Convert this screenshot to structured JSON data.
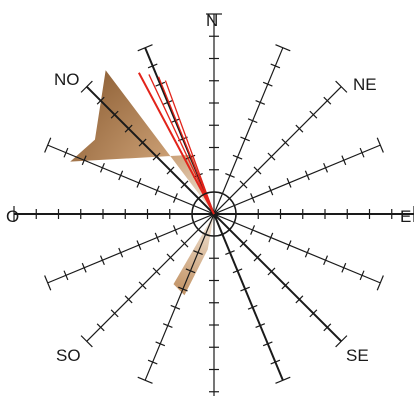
{
  "labels": {
    "n": "N",
    "ne": "NE",
    "e": "E",
    "se": "SE",
    "s": "S",
    "so": "SO",
    "o": "O",
    "no": "NO"
  },
  "chart_data": {
    "type": "rose",
    "directions": 16,
    "main_axes": [
      "N",
      "E",
      "S",
      "O"
    ],
    "bold_axes": [
      "NO",
      "SO",
      "NNO",
      "O"
    ],
    "ticks_per_spoke": 8,
    "petals": [
      {
        "name": "",
        "vertices_deg_len": [
          [
            0,
            0
          ],
          [
            -37,
            1.0
          ],
          [
            -58,
            0.78
          ],
          [
            -70,
            0.85
          ],
          [
            -20,
            0.35
          ]
        ],
        "color": "#a87545"
      },
      {
        "name": "",
        "vertices_deg_len": [
          [
            0,
            0
          ],
          [
            -150,
            0.45
          ],
          [
            -160,
            0.48
          ],
          [
            -170,
            0.2
          ]
        ],
        "color": "#8c5e34"
      }
    ],
    "red_lines_deg": [
      -28,
      -25,
      -22,
      -20
    ],
    "colors": {
      "spoke": "#1a1a1a",
      "petal_dark": "#8c5e34",
      "petal_light": "#ecdcc8",
      "red": "#e2231a"
    }
  }
}
